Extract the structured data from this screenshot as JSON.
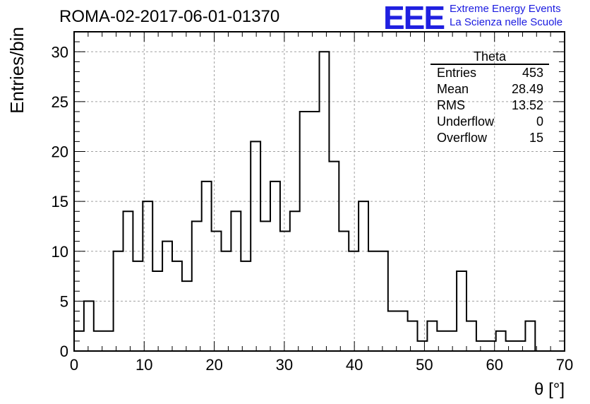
{
  "header": {
    "run_title": "ROMA-02-2017-06-01-01370",
    "logo_text": "EEE",
    "logo_line1": "Extreme Energy Events",
    "logo_line2": "La Scienza nelle Scuole"
  },
  "stats": {
    "title": "Theta",
    "rows": [
      {
        "label": "Entries",
        "value": "453"
      },
      {
        "label": "Mean",
        "value": "28.49"
      },
      {
        "label": "RMS",
        "value": "13.52"
      },
      {
        "label": "Underflow",
        "value": "0"
      },
      {
        "label": "Overflow",
        "value": "15"
      }
    ]
  },
  "colors": {
    "line": "#000000",
    "grid": "#a0a0a0",
    "logo": "#2020e0"
  },
  "chart_data": {
    "type": "bar",
    "style": "step-histogram",
    "xlabel": "θ [°]",
    "ylabel": "Entries/bin",
    "xlim": [
      0,
      70
    ],
    "ylim": [
      0,
      32
    ],
    "grid": true,
    "bin_width": 1.4,
    "x_ticks": [
      0,
      10,
      20,
      30,
      40,
      50,
      60,
      70
    ],
    "y_ticks": [
      0,
      5,
      10,
      15,
      20,
      25,
      30
    ],
    "values": [
      2,
      5,
      2,
      2,
      10,
      14,
      9,
      15,
      8,
      11,
      9,
      7,
      13,
      17,
      12,
      10,
      14,
      9,
      21,
      13,
      17,
      12,
      14,
      24,
      24,
      30,
      19,
      12,
      10,
      15,
      10,
      10,
      4,
      4,
      3,
      1,
      3,
      2,
      2,
      8,
      3,
      1,
      1,
      2,
      1,
      1,
      3,
      0,
      0,
      0
    ]
  }
}
